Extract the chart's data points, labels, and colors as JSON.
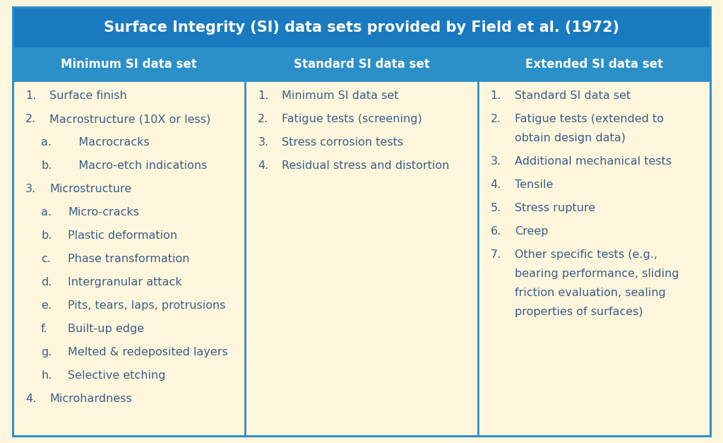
{
  "title": "Surface Integrity (SI) data sets provided by Field et al. (1972)",
  "title_bg": "#1a7abf",
  "title_text_color": "#ffffff",
  "header_bg": "#2b8fc9",
  "header_text_color": "#ffffff",
  "body_bg": "#fdf5dc",
  "border_color": "#2b8fc9",
  "text_color": "#3a5f8a",
  "col_headers": [
    "Minimum SI data set",
    "Standard SI data set",
    "Extended SI data set"
  ],
  "col1_items": [
    {
      "prefix": "1.",
      "text": "Surface finish",
      "sub": false
    },
    {
      "prefix": "2.",
      "text": "Macrostructure (10X or less)",
      "sub": false
    },
    {
      "prefix": "a.",
      "text": "   Macrocracks",
      "sub": true
    },
    {
      "prefix": "b.",
      "text": "   Macro-etch indications",
      "sub": true
    },
    {
      "prefix": "3.",
      "text": "Microstructure",
      "sub": false
    },
    {
      "prefix": "a.",
      "text": "Micro-cracks",
      "sub": true
    },
    {
      "prefix": "b.",
      "text": "Plastic deformation",
      "sub": true
    },
    {
      "prefix": "c.",
      "text": "Phase transformation",
      "sub": true
    },
    {
      "prefix": "d.",
      "text": "Intergranular attack",
      "sub": true
    },
    {
      "prefix": "e.",
      "text": "Pits, tears, laps, protrusions",
      "sub": true
    },
    {
      "prefix": "f.",
      "text": "Built-up edge",
      "sub": true
    },
    {
      "prefix": "g.",
      "text": "Melted & redeposited layers",
      "sub": true
    },
    {
      "prefix": "h.",
      "text": "Selective etching",
      "sub": true
    },
    {
      "prefix": "4.",
      "text": "Microhardness",
      "sub": false
    }
  ],
  "col2_items": [
    {
      "prefix": "1.",
      "text": "Minimum SI data set",
      "sub": false
    },
    {
      "prefix": "2.",
      "text": "Fatigue tests (screening)",
      "sub": false
    },
    {
      "prefix": "3.",
      "text": "Stress corrosion tests",
      "sub": false
    },
    {
      "prefix": "4.",
      "text": "Residual stress and distortion",
      "sub": false
    }
  ],
  "col3_items": [
    {
      "prefix": "1.",
      "text": "Standard SI data set",
      "sub": false
    },
    {
      "prefix": "2.",
      "text": "Fatigue tests (extended to",
      "sub": false,
      "cont": "obtain design data)"
    },
    {
      "prefix": "3.",
      "text": "Additional mechanical tests",
      "sub": false
    },
    {
      "prefix": "4.",
      "text": "Tensile",
      "sub": false
    },
    {
      "prefix": "5.",
      "text": "Stress rupture",
      "sub": false
    },
    {
      "prefix": "6.",
      "text": "Creep",
      "sub": false
    },
    {
      "prefix": "7.",
      "text": "Other specific tests (e.g.,",
      "sub": false,
      "cont3": [
        "bearing performance, sliding",
        "friction evaluation, sealing",
        "properties of surfaces)"
      ]
    }
  ],
  "figsize": [
    10.24,
    6.27
  ],
  "dpi": 100
}
